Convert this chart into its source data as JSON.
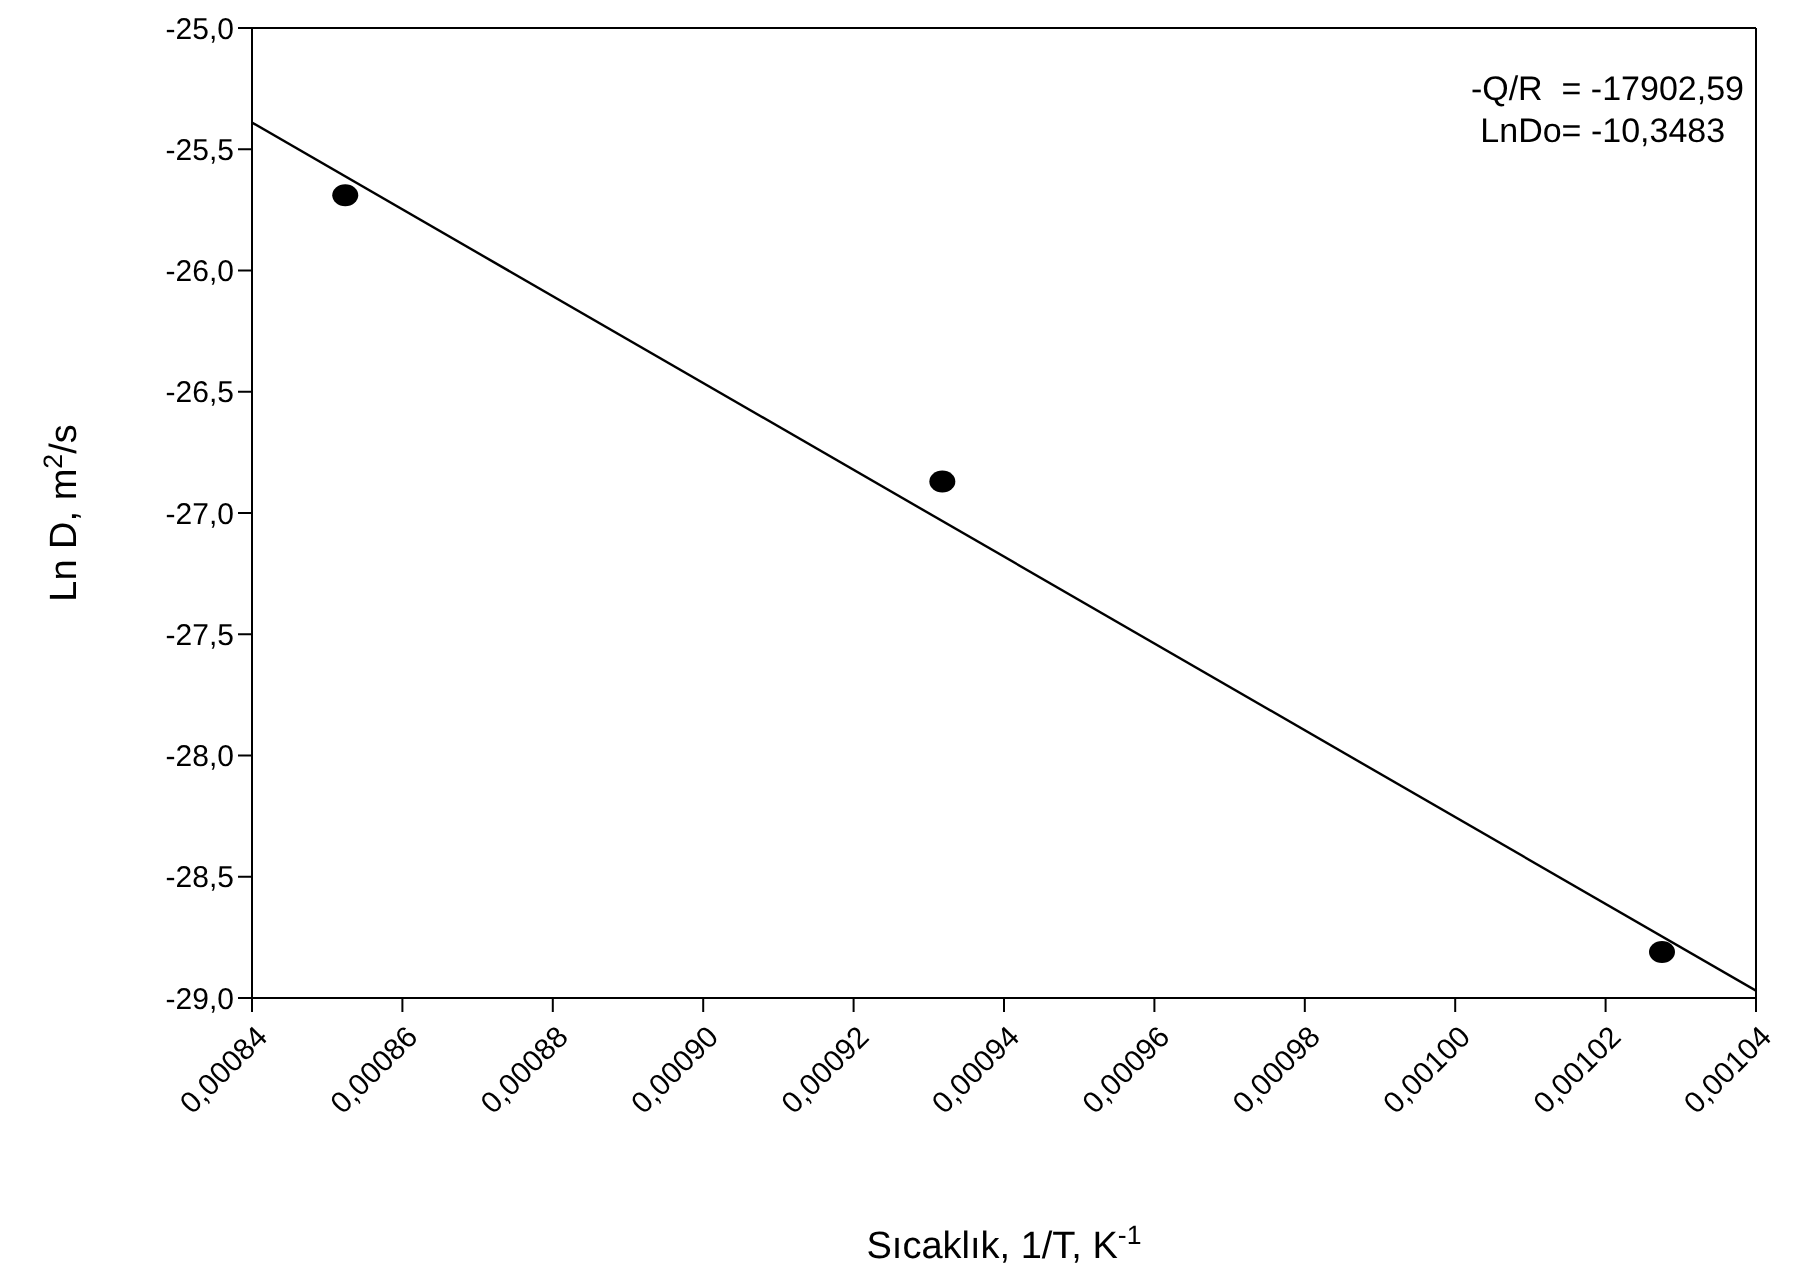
{
  "chart_data": {
    "type": "scatter",
    "xlabel": "Sıcaklık, 1/T, K$^{-1}$",
    "ylabel": "Ln D, m$^{2}$/s",
    "annotations": [
      "-Q/R  = -17902,59",
      " LnDo= -10,3483"
    ],
    "series": [
      {
        "type": "scatter",
        "color": "#000000",
        "marker": "circle",
        "x": [
          0.0008524,
          0.0009318,
          0.0010275
        ],
        "values": [
          -25.69,
          -26.87,
          -28.81
        ]
      },
      {
        "type": "line",
        "color": "#000000",
        "marker": "none",
        "line_style": "solid",
        "x": [
          0.00084,
          0.00104
        ],
        "values": [
          -25.39,
          -28.97
        ]
      }
    ],
    "xlim": [
      0.00084,
      0.00104
    ],
    "xticks": [
      {
        "value": 0.00084,
        "label": "0,00084"
      },
      {
        "value": 0.00086,
        "label": "0,00086"
      },
      {
        "value": 0.00088,
        "label": "0,00088"
      },
      {
        "value": 0.0009,
        "label": "0,00090"
      },
      {
        "value": 0.00092,
        "label": "0,00092"
      },
      {
        "value": 0.00094,
        "label": "0,00094"
      },
      {
        "value": 0.00096,
        "label": "0,00096"
      },
      {
        "value": 0.00098,
        "label": "0,00098"
      },
      {
        "value": 0.001,
        "label": "0,00100"
      },
      {
        "value": 0.00102,
        "label": "0,00102"
      },
      {
        "value": 0.00104,
        "label": "0,00104"
      }
    ],
    "ylim": [
      -29,
      -25
    ],
    "yticks": [
      {
        "value": -29,
        "label": "-29,0"
      },
      {
        "value": -28.5,
        "label": "-28,5"
      },
      {
        "value": -28,
        "label": "-28,0"
      },
      {
        "value": -27.5,
        "label": "-27,5"
      },
      {
        "value": -27,
        "label": "-27,0"
      },
      {
        "value": -26.5,
        "label": "-26,5"
      },
      {
        "value": -26,
        "label": "-26,0"
      },
      {
        "value": -25.5,
        "label": "-25,5"
      },
      {
        "value": -25,
        "label": "-25,0"
      }
    ],
    "grid": false,
    "legend": false
  }
}
